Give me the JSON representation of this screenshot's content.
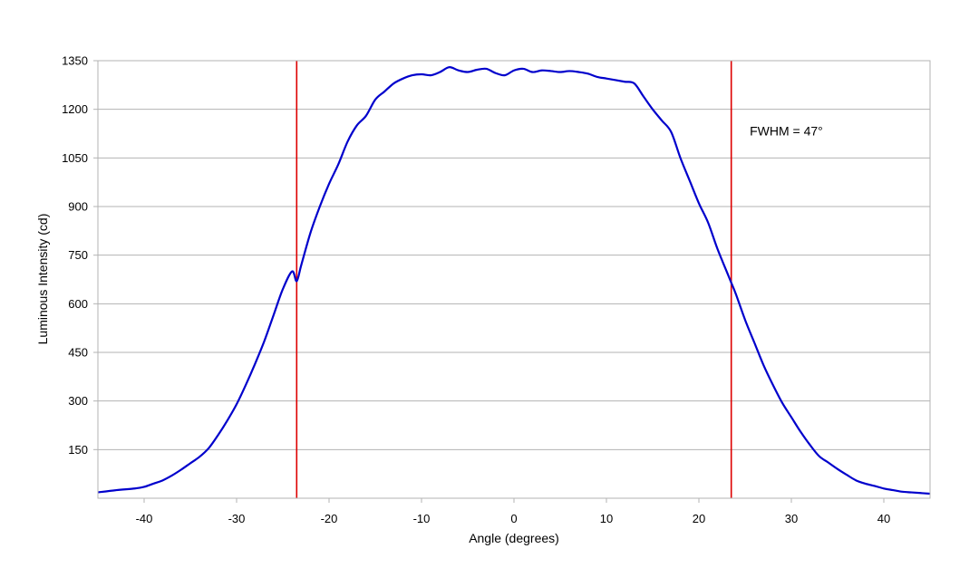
{
  "chart_data": {
    "type": "line",
    "title": "",
    "xlabel": "Angle (degrees)",
    "ylabel": "Luminous Intensity (cd)",
    "xlim": [
      -45,
      45
    ],
    "ylim": [
      0,
      1350
    ],
    "xticks": [
      -40,
      -30,
      -20,
      -10,
      0,
      10,
      20,
      30,
      40
    ],
    "yticks": [
      150,
      300,
      450,
      600,
      750,
      900,
      1050,
      1200,
      1350
    ],
    "grid": "horizontal",
    "legend": "none",
    "series": [
      {
        "color": "#0000cc",
        "x": [
          -45,
          -43,
          -41,
          -40,
          -39,
          -38,
          -37,
          -36,
          -35,
          -34,
          -33,
          -32,
          -31,
          -30,
          -29,
          -28,
          -27,
          -26,
          -25,
          -24,
          -23.5,
          -23,
          -22,
          -21,
          -20,
          -19,
          -18,
          -17,
          -16,
          -15,
          -14,
          -13,
          -12,
          -11,
          -10,
          -9,
          -8,
          -7,
          -6,
          -5,
          -4,
          -3,
          -2,
          -1,
          0,
          1,
          2,
          3,
          4,
          5,
          6,
          7,
          8,
          9,
          10,
          11,
          12,
          13,
          14,
          15,
          16,
          17,
          18,
          19,
          20,
          21,
          22,
          23,
          23.5,
          24,
          25,
          26,
          27,
          28,
          29,
          30,
          31,
          32,
          33,
          34,
          35,
          36,
          37,
          38,
          39,
          40,
          41,
          42,
          43,
          44,
          45
        ],
        "y": [
          18,
          25,
          30,
          35,
          45,
          55,
          70,
          88,
          108,
          128,
          155,
          195,
          240,
          290,
          350,
          415,
          485,
          565,
          645,
          700,
          670,
          720,
          820,
          900,
          970,
          1030,
          1100,
          1150,
          1180,
          1230,
          1255,
          1280,
          1295,
          1305,
          1308,
          1305,
          1315,
          1330,
          1320,
          1315,
          1322,
          1325,
          1312,
          1305,
          1320,
          1325,
          1315,
          1320,
          1318,
          1315,
          1318,
          1315,
          1310,
          1300,
          1295,
          1290,
          1285,
          1280,
          1240,
          1200,
          1165,
          1130,
          1050,
          980,
          910,
          850,
          770,
          700,
          665,
          630,
          550,
          480,
          410,
          350,
          295,
          250,
          205,
          165,
          130,
          110,
          90,
          72,
          55,
          45,
          38,
          30,
          25,
          20,
          18,
          16,
          14
        ]
      }
    ],
    "markers": [
      {
        "x": -23.5,
        "color": "#dd0000"
      },
      {
        "x": 23.5,
        "color": "#dd0000"
      }
    ],
    "annotation": {
      "text": "FWHM = 47°",
      "x": 25.5,
      "y": 1120
    }
  }
}
